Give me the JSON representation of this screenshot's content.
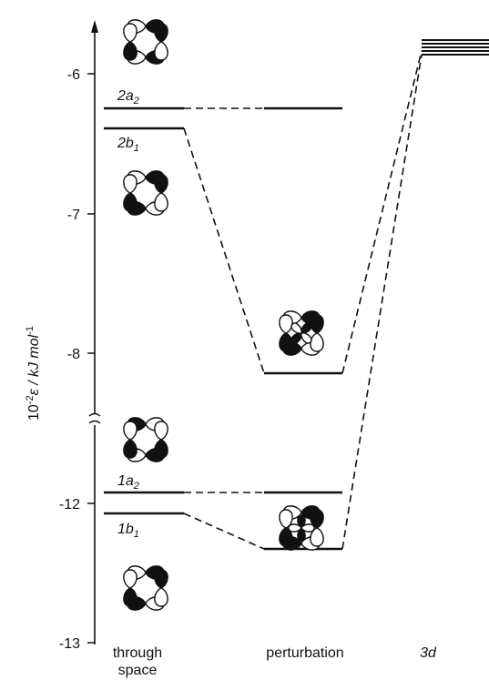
{
  "axis": {
    "label_prefix": "10",
    "label_exp": "-2",
    "label_body": "ε / kJ mol",
    "label_exp2": "-1",
    "ticks": [
      "-6",
      "-7",
      "-8",
      "-12",
      "-13"
    ]
  },
  "levels": {
    "a2_upper": {
      "main": "2a",
      "sub": "2"
    },
    "b1_upper": {
      "main": "2b",
      "sub": "1"
    },
    "a2_lower": {
      "main": "1a",
      "sub": "2"
    },
    "b1_lower": {
      "main": "1b",
      "sub": "1"
    },
    "d": "3d"
  },
  "columns": {
    "through_space_1": "through",
    "through_space_2": "space",
    "perturbation": "perturbation",
    "d": "3d"
  },
  "colors": {
    "ink": "#111111",
    "background": "#ffffff"
  }
}
